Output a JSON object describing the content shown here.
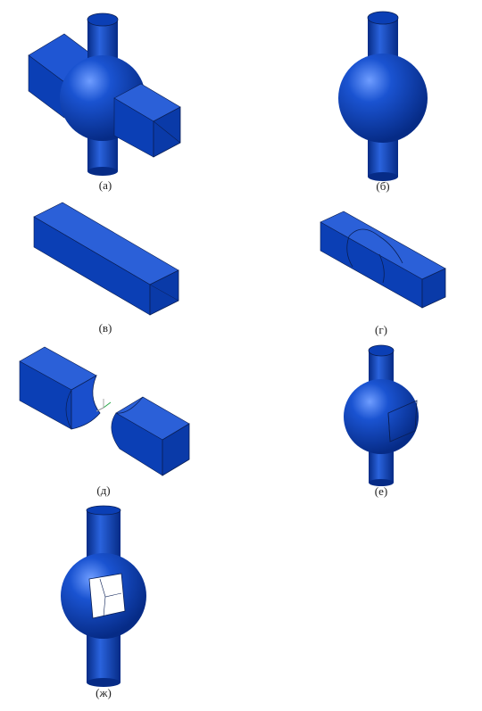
{
  "figure": {
    "labels": {
      "a": "(а)",
      "b": "(б)",
      "v": "(в)",
      "g": "(г)",
      "d": "(д)",
      "e": "(е)",
      "zh": "(ж)"
    },
    "colors": {
      "body": "#0b3fb5",
      "dark": "#062b86",
      "light": "#3a72e6",
      "edge": "#0a1f55",
      "highlight": "#8fb6ff"
    }
  }
}
